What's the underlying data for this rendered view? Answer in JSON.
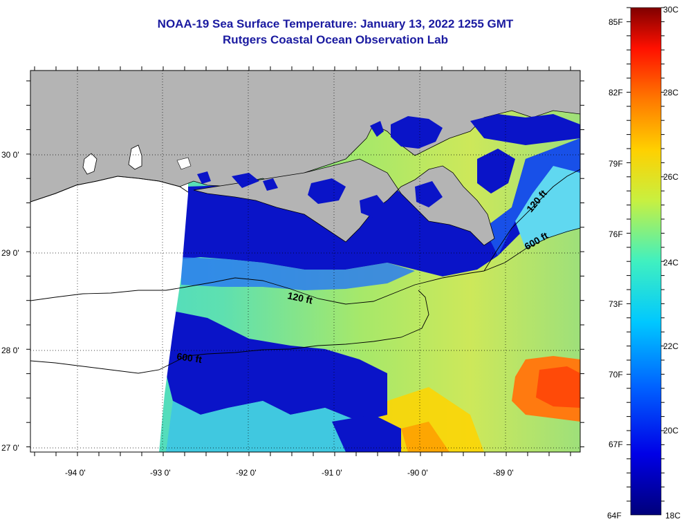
{
  "title": {
    "line1": "NOAA-19 Sea Surface Temperature:  January 13, 2022 1255 GMT",
    "line2": "Rutgers Coastal Ocean Observation Lab"
  },
  "lat_labels": [
    "30 0'",
    "29 0'",
    "28 0'",
    "27 0'"
  ],
  "lon_labels": [
    "-94 0'",
    "-93 0'",
    "-92 0'",
    "-91 0'",
    "-90 0'",
    "-89 0'"
  ],
  "contours": {
    "shelf_120_west": "120 ft",
    "shelf_120_east": "120 ft",
    "shelf_600_west": "600 ft",
    "shelf_600_east": "600 ft"
  },
  "colorbar": {
    "fahrenheit": [
      "85F",
      "82F",
      "79F",
      "76F",
      "73F",
      "70F",
      "67F",
      "64F"
    ],
    "celsius": [
      "30C",
      "28C",
      "26C",
      "24C",
      "22C",
      "20C",
      "18C"
    ],
    "range_c": [
      18,
      30
    ]
  },
  "colors": {
    "land": "#b4b4b4",
    "no_data": "#ffffff",
    "title": "#1a1aa0"
  }
}
